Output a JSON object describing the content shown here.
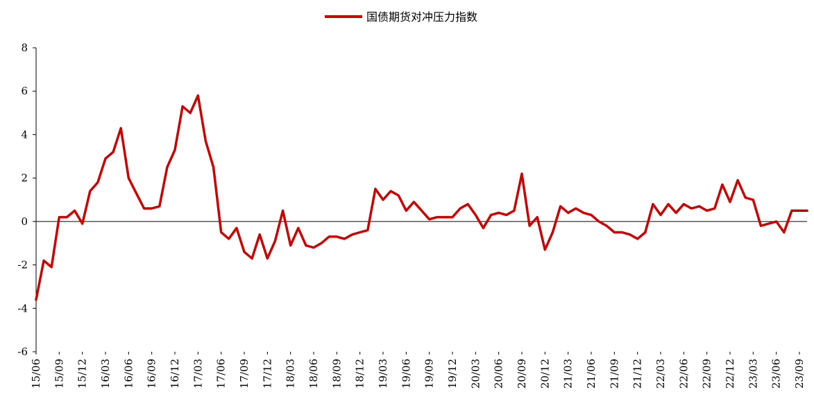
{
  "chart_data": {
    "type": "line",
    "legend": {
      "position": "top-center",
      "entries": [
        "国债期货对冲压力指数"
      ]
    },
    "xlabel": "",
    "ylabel": "",
    "ylim": [
      -6,
      8
    ],
    "y_ticks": [
      -6,
      -4,
      -2,
      0,
      2,
      4,
      6,
      8
    ],
    "y_tick_labels": [
      "-6",
      "-4",
      "-2",
      "0",
      "2",
      "4",
      "6",
      "8"
    ],
    "x_tick_labels": [
      "15/06",
      "15/09",
      "15/12",
      "16/03",
      "16/06",
      "16/09",
      "16/12",
      "17/03",
      "17/06",
      "17/09",
      "17/12",
      "18/03",
      "18/06",
      "18/09",
      "18/12",
      "19/03",
      "19/06",
      "19/09",
      "19/12",
      "20/03",
      "20/06",
      "20/09",
      "20/12",
      "21/03",
      "21/06",
      "21/09",
      "21/12",
      "22/03",
      "22/06",
      "22/09",
      "22/12",
      "23/03",
      "23/06",
      "23/09"
    ],
    "grid": false,
    "series": [
      {
        "name": "国债期货对冲压力指数",
        "color": "#cc0000",
        "x": [
          "15/06",
          "15/07",
          "15/08",
          "15/09",
          "15/10",
          "15/11",
          "15/12",
          "16/01",
          "16/02",
          "16/03",
          "16/04",
          "16/05",
          "16/06",
          "16/07",
          "16/08",
          "16/09",
          "16/10",
          "16/11",
          "16/12",
          "17/01",
          "17/02",
          "17/03",
          "17/04",
          "17/05",
          "17/06",
          "17/07",
          "17/08",
          "17/09",
          "17/10",
          "17/11",
          "17/12",
          "18/01",
          "18/02",
          "18/03",
          "18/04",
          "18/05",
          "18/06",
          "18/07",
          "18/08",
          "18/09",
          "18/10",
          "18/11",
          "18/12",
          "19/01",
          "19/02",
          "19/03",
          "19/04",
          "19/05",
          "19/06",
          "19/07",
          "19/08",
          "19/09",
          "19/10",
          "19/11",
          "19/12",
          "20/01",
          "20/02",
          "20/03",
          "20/04",
          "20/05",
          "20/06",
          "20/07",
          "20/08",
          "20/09",
          "20/10",
          "20/11",
          "20/12",
          "21/01",
          "21/02",
          "21/03",
          "21/04",
          "21/05",
          "21/06",
          "21/07",
          "21/08",
          "21/09",
          "21/10",
          "21/11",
          "21/12",
          "22/01",
          "22/02",
          "22/03",
          "22/04",
          "22/05",
          "22/06",
          "22/07",
          "22/08",
          "22/09",
          "22/10",
          "22/11",
          "22/12",
          "23/01",
          "23/02",
          "23/03",
          "23/04",
          "23/05",
          "23/06",
          "23/07",
          "23/08",
          "23/09",
          "23/10"
        ],
        "values": [
          -3.6,
          -1.8,
          -2.1,
          0.2,
          0.2,
          0.5,
          -0.1,
          1.4,
          1.8,
          2.9,
          3.2,
          4.3,
          2.0,
          1.3,
          0.6,
          0.6,
          0.7,
          2.5,
          3.3,
          5.3,
          5.0,
          5.8,
          3.7,
          2.5,
          -0.5,
          -0.8,
          -0.3,
          -1.4,
          -1.7,
          -0.6,
          -1.7,
          -0.9,
          0.5,
          -1.1,
          -0.3,
          -1.1,
          -1.2,
          -1.0,
          -0.7,
          -0.7,
          -0.8,
          -0.6,
          -0.5,
          -0.4,
          1.5,
          1.0,
          1.4,
          1.2,
          0.5,
          0.9,
          0.5,
          0.1,
          0.2,
          0.2,
          0.2,
          0.6,
          0.8,
          0.3,
          -0.3,
          0.3,
          0.4,
          0.3,
          0.5,
          2.2,
          -0.2,
          0.2,
          -1.3,
          -0.5,
          0.7,
          0.4,
          0.6,
          0.4,
          0.3,
          0.0,
          -0.2,
          -0.5,
          -0.5,
          -0.6,
          -0.8,
          -0.5,
          0.8,
          0.3,
          0.8,
          0.4,
          0.8,
          0.6,
          0.7,
          0.5,
          0.6,
          1.7,
          0.9,
          1.9,
          1.1,
          1.0,
          -0.2,
          -0.1,
          0.0,
          -0.5,
          0.5,
          0.5,
          0.5
        ]
      }
    ]
  }
}
